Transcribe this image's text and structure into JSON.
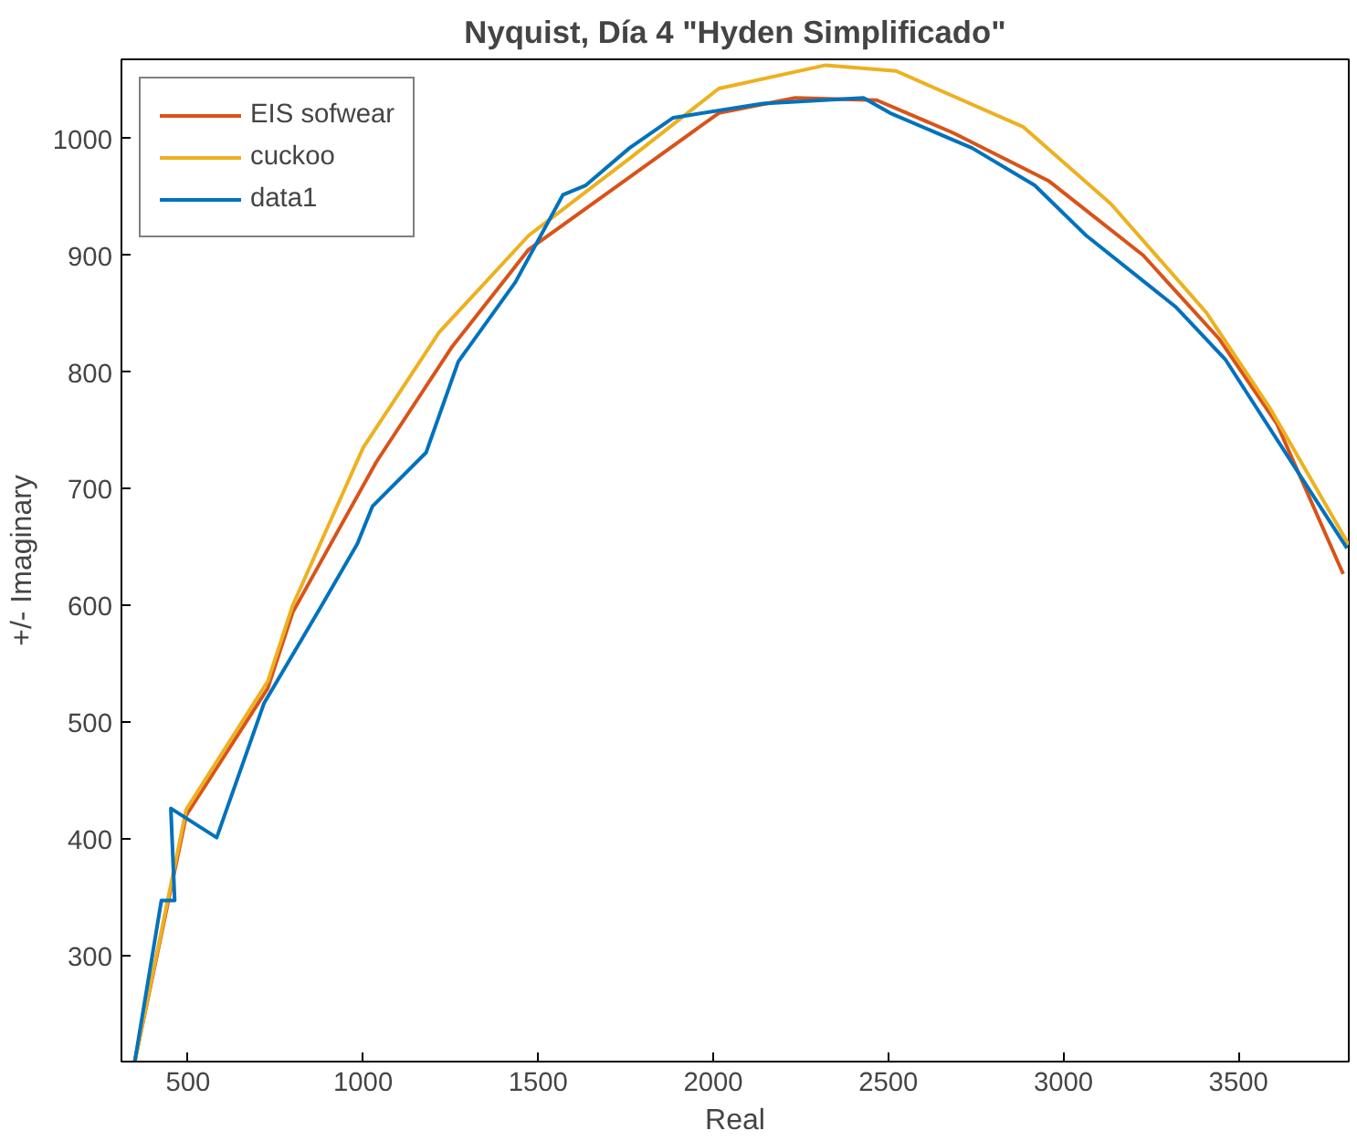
{
  "chart_data": {
    "type": "line",
    "title": "Nyquist, Día 4 \"Hyden Simplificado\"",
    "xlabel": "Real",
    "ylabel": "+/- Imaginary",
    "xlim": [
      310,
      3815
    ],
    "ylim": [
      209,
      1068
    ],
    "xticks": [
      500,
      1000,
      1500,
      2000,
      2500,
      3000,
      3500
    ],
    "yticks": [
      300,
      400,
      500,
      600,
      700,
      800,
      900,
      1000
    ],
    "grid": false,
    "legend": "top left",
    "line_style": "solid",
    "marker": "none",
    "series": [
      {
        "name": "EIS sofwear",
        "color": "#d95319",
        "x": [
          348,
          495,
          728,
          799,
          1038,
          1255,
          1473,
          1761,
          2016,
          2234,
          2467,
          2685,
          2957,
          3228,
          3446,
          3609,
          3799
        ],
        "values": [
          209,
          420,
          529,
          594,
          723,
          822,
          905,
          967,
          1022,
          1035,
          1033,
          1005,
          964,
          900,
          828,
          756,
          627
        ]
      },
      {
        "name": "cuckoo",
        "color": "#edb120",
        "x": [
          348,
          495,
          728,
          799,
          1000,
          1217,
          1473,
          1761,
          2016,
          2321,
          2522,
          2886,
          3136,
          3408,
          3592,
          3815
        ],
        "values": [
          209,
          425,
          535,
          600,
          735,
          834,
          917,
          983,
          1043,
          1063,
          1058,
          1010,
          944,
          851,
          768,
          652
        ]
      },
      {
        "name": "data1",
        "color": "#0072bd",
        "x": [
          348,
          424,
          462,
          451,
          582,
          717,
          880,
          984,
          1027,
          1180,
          1272,
          1435,
          1571,
          1636,
          1761,
          1886,
          2141,
          2429,
          2505,
          2739,
          2918,
          3065,
          3320,
          3462,
          3810
        ],
        "values": [
          209,
          347,
          347,
          426,
          401,
          516,
          599,
          653,
          685,
          731,
          809,
          877,
          952,
          960,
          992,
          1018,
          1030,
          1035,
          1022,
          992,
          960,
          917,
          856,
          811,
          649
        ]
      }
    ]
  }
}
